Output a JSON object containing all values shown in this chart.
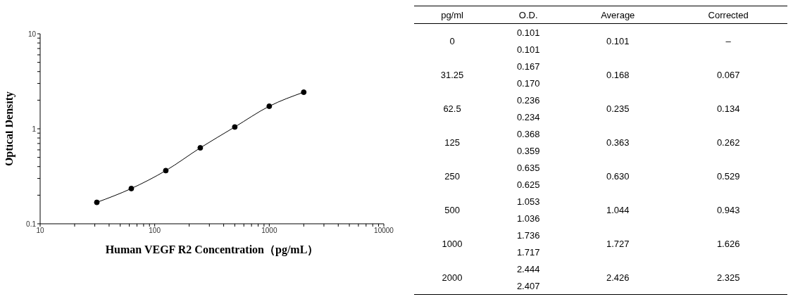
{
  "chart_data": [
    {
      "type": "line",
      "xlabel": "Human VEGF R2 Concentration（pg/mL）",
      "ylabel": "Optical Density",
      "log": "xy",
      "marker": "circle",
      "line_style": "solid",
      "x": [
        31.25,
        62.5,
        125,
        250,
        500,
        1000,
        2000
      ],
      "series": [
        {
          "color": "#000000",
          "values": [
            0.168,
            0.235,
            0.363,
            0.63,
            1.044,
            1.727,
            2.426
          ]
        }
      ],
      "xlim": [
        10,
        10000
      ],
      "ylim": [
        0.1,
        10
      ],
      "xticks": [
        10,
        {
          "value": 20,
          "label": null
        },
        {
          "value": 30,
          "label": null
        },
        {
          "value": 40,
          "label": null
        },
        {
          "value": 50,
          "label": null
        },
        {
          "value": 60,
          "label": null
        },
        {
          "value": 70,
          "label": null
        },
        {
          "value": 80,
          "label": null
        },
        {
          "value": 90,
          "label": null
        },
        100,
        {
          "value": 200,
          "label": null
        },
        {
          "value": 300,
          "label": null
        },
        {
          "value": 400,
          "label": null
        },
        {
          "value": 500,
          "label": null
        },
        {
          "value": 600,
          "label": null
        },
        {
          "value": 700,
          "label": null
        },
        {
          "value": 800,
          "label": null
        },
        {
          "value": 900,
          "label": null
        },
        1000,
        {
          "value": 2000,
          "label": null
        },
        {
          "value": 3000,
          "label": null
        },
        {
          "value": 4000,
          "label": null
        },
        {
          "value": 5000,
          "label": null
        },
        {
          "value": 6000,
          "label": null
        },
        {
          "value": 7000,
          "label": null
        },
        {
          "value": 8000,
          "label": null
        },
        {
          "value": 9000,
          "label": null
        },
        10000
      ],
      "yticks": [
        0.1,
        {
          "value": 0.2,
          "label": null
        },
        {
          "value": 0.3,
          "label": null
        },
        {
          "value": 0.4,
          "label": null
        },
        {
          "value": 0.5,
          "label": null
        },
        {
          "value": 0.6,
          "label": null
        },
        {
          "value": 0.7,
          "label": null
        },
        {
          "value": 0.8,
          "label": null
        },
        {
          "value": 0.9,
          "label": null
        },
        1,
        {
          "value": 2,
          "label": null
        },
        {
          "value": 3,
          "label": null
        },
        {
          "value": 4,
          "label": null
        },
        {
          "value": 5,
          "label": null
        },
        {
          "value": 6,
          "label": null
        },
        {
          "value": 7,
          "label": null
        },
        {
          "value": 8,
          "label": null
        },
        {
          "value": 9,
          "label": null
        },
        10
      ]
    },
    {
      "type": "other",
      "xlabel": "pg/ml",
      "data_labels": true,
      "categories": [
        "0",
        "31.25",
        "62.5",
        "125",
        "250",
        "500",
        "1000",
        "2000"
      ],
      "series": [
        {
          "name": "O.D.",
          "values": [
            0.101,
            0.167,
            0.236,
            0.368,
            0.635,
            1.053,
            1.736,
            2.444
          ]
        },
        {
          "values": [
            0.101,
            0.17,
            0.234,
            0.359,
            0.625,
            1.036,
            1.717,
            2.407
          ],
          "value_labels": [
            "0.101",
            "0.170",
            "0.234",
            "0.359",
            "0.625",
            "1.036",
            "1.717",
            "2.407"
          ]
        },
        {
          "name": "Average",
          "values": [
            0.101,
            0.168,
            0.235,
            0.363,
            0.63,
            1.044,
            1.727,
            2.426
          ],
          "value_labels": [
            "0.101",
            "0.168",
            "0.235",
            "0.363",
            "0.630",
            "1.044",
            "1.727",
            "2.426"
          ]
        },
        {
          "name": "Corrected",
          "values": [
            null,
            0.067,
            0.134,
            0.262,
            0.529,
            0.943,
            1.626,
            2.325
          ],
          "value_labels": [
            "–",
            "0.067",
            "0.134",
            "0.262",
            "0.529",
            "0.943",
            "1.626",
            "2.325"
          ]
        }
      ]
    }
  ]
}
